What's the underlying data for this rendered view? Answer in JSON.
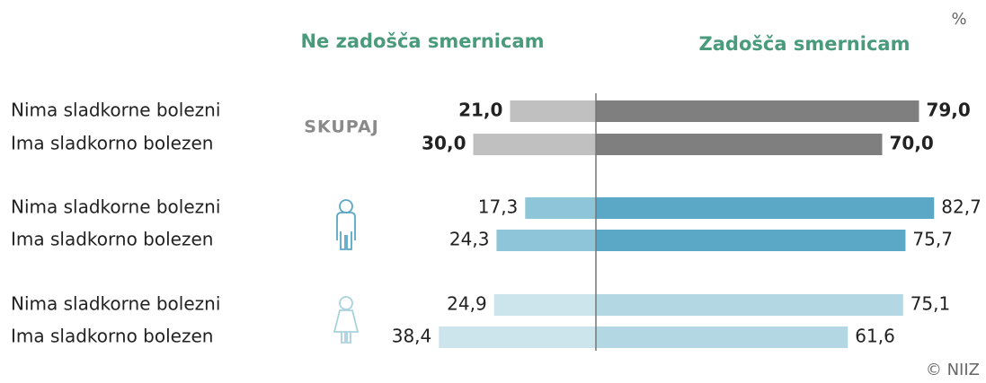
{
  "chart_data": {
    "type": "diverging_bar",
    "unit_label": "%",
    "left_title": "Ne zadošča smernicam",
    "right_title": "Zadošča smernicam",
    "source": "© NIIZ",
    "groups": [
      {
        "name": "SKUPAJ",
        "categories": [
          "Nima sladkorne bolezni",
          "Ima sladkorno bolezen"
        ],
        "left": {
          "color": "#c0c0c0",
          "values": [
            21.0,
            30.0
          ],
          "value_labels": [
            "21,0",
            "30,0"
          ]
        },
        "right": {
          "color": "#7f7f7f",
          "values": [
            79.0,
            70.0
          ],
          "value_labels": [
            "79,0",
            "70,0"
          ]
        }
      },
      {
        "categories": [
          "Nima sladkorne bolezni",
          "Ima sladkorno bolezen"
        ],
        "left": {
          "color": "#8fc5d8",
          "values": [
            17.3,
            24.3
          ],
          "value_labels": [
            "17,3",
            "24,3"
          ]
        },
        "right": {
          "color": "#5aa8c6",
          "values": [
            82.7,
            75.7
          ],
          "value_labels": [
            "82,7",
            "75,7"
          ]
        }
      },
      {
        "categories": [
          "Nima sladkorne bolezni",
          "Ima sladkorno bolezen"
        ],
        "left": {
          "color": "#cce4ec",
          "values": [
            24.9,
            38.4
          ],
          "value_labels": [
            "24,9",
            "38,4"
          ]
        },
        "right": {
          "color": "#b3d8e3",
          "values": [
            75.1,
            61.6
          ],
          "value_labels": [
            "75,1",
            "61,6"
          ]
        }
      }
    ]
  }
}
